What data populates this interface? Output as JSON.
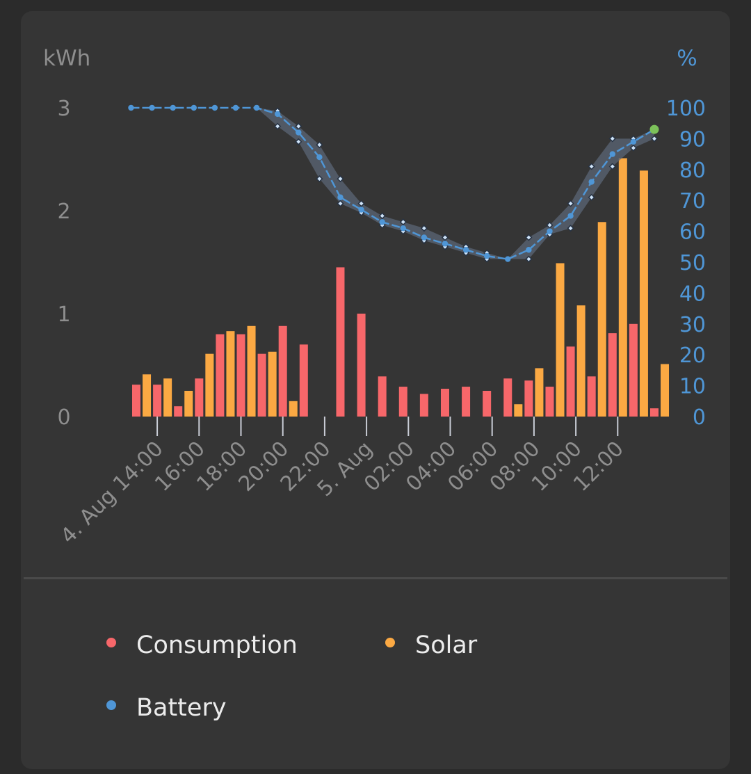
{
  "colors": {
    "consumption": "#f7676a",
    "solar": "#fba943",
    "battery": "#4f96d6",
    "battery_band": "#5b6676",
    "current_point": "#7cc15a",
    "left_axis_text": "#8e8e8e",
    "right_axis_text": "#4f96d6"
  },
  "chart_data": {
    "type": "bar",
    "left_axis": {
      "unit": "kWh",
      "ticks": [
        "0",
        "1",
        "2",
        "3"
      ],
      "ylim": [
        0,
        3
      ]
    },
    "right_axis": {
      "unit": "%",
      "ticks": [
        "0",
        "10",
        "20",
        "30",
        "40",
        "50",
        "60",
        "70",
        "80",
        "90",
        "100"
      ],
      "ylim": [
        0,
        100
      ]
    },
    "x_tick_labels": [
      "4. Aug 14:00",
      "16:00",
      "18:00",
      "20:00",
      "22:00",
      "5. Aug",
      "02:00",
      "04:00",
      "06:00",
      "08:00",
      "10:00",
      "12:00"
    ],
    "series": [
      {
        "name": "Consumption",
        "axis": "left",
        "points": [
          [
            13.0,
            0.31
          ],
          [
            14.0,
            0.31
          ],
          [
            15.0,
            0.1
          ],
          [
            16.0,
            0.37
          ],
          [
            17.0,
            0.8
          ],
          [
            18.0,
            0.8
          ],
          [
            19.0,
            0.61
          ],
          [
            20.0,
            0.88
          ],
          [
            21.0,
            0.7
          ],
          [
            22.75,
            1.45
          ],
          [
            23.75,
            1.0
          ],
          [
            0.75,
            0.39
          ],
          [
            1.75,
            0.29
          ],
          [
            2.75,
            0.22
          ],
          [
            3.75,
            0.27
          ],
          [
            4.75,
            0.29
          ],
          [
            5.75,
            0.25
          ],
          [
            6.75,
            0.37
          ],
          [
            7.75,
            0.35
          ],
          [
            8.75,
            0.29
          ],
          [
            9.75,
            0.68
          ],
          [
            10.75,
            0.39
          ],
          [
            11.75,
            0.81
          ],
          [
            12.75,
            0.9
          ],
          [
            13.75,
            0.08
          ]
        ]
      },
      {
        "name": "Solar",
        "axis": "left",
        "points": [
          [
            13.5,
            0.41
          ],
          [
            14.5,
            0.37
          ],
          [
            15.5,
            0.25
          ],
          [
            16.5,
            0.61
          ],
          [
            17.5,
            0.83
          ],
          [
            18.5,
            0.88
          ],
          [
            19.5,
            0.63
          ],
          [
            20.5,
            0.15
          ],
          [
            7.25,
            0.12
          ],
          [
            8.25,
            0.47
          ],
          [
            9.25,
            1.49
          ],
          [
            10.25,
            1.08
          ],
          [
            11.25,
            1.89
          ],
          [
            12.25,
            2.51
          ],
          [
            13.25,
            2.39
          ],
          [
            14.25,
            0.51
          ]
        ]
      },
      {
        "name": "Battery",
        "axis": "right",
        "type": "line",
        "points": [
          [
            12.75,
            100
          ],
          [
            13.75,
            100
          ],
          [
            14.75,
            100
          ],
          [
            15.75,
            100
          ],
          [
            16.75,
            100
          ],
          [
            17.75,
            100
          ],
          [
            18.75,
            100
          ],
          [
            19.75,
            98
          ],
          [
            20.75,
            92
          ],
          [
            21.75,
            84
          ],
          [
            22.75,
            71
          ],
          [
            23.75,
            67
          ],
          [
            0.75,
            63
          ],
          [
            1.75,
            61
          ],
          [
            2.75,
            58
          ],
          [
            3.75,
            56
          ],
          [
            4.75,
            54
          ],
          [
            5.75,
            52
          ],
          [
            6.75,
            51
          ],
          [
            7.75,
            54
          ],
          [
            8.75,
            60
          ],
          [
            9.75,
            65
          ],
          [
            10.75,
            76
          ],
          [
            11.75,
            85
          ],
          [
            12.75,
            89
          ],
          [
            13.75,
            93
          ]
        ],
        "band_low": [
          100,
          100,
          100,
          100,
          100,
          100,
          100,
          94,
          89,
          77,
          69,
          66,
          62,
          60,
          57,
          55,
          53,
          51,
          51,
          51,
          59,
          61,
          71,
          81,
          87,
          90
        ],
        "band_high": [
          100,
          100,
          100,
          100,
          100,
          100,
          100,
          99,
          94,
          88,
          77,
          69,
          65,
          63,
          61,
          58,
          55,
          53,
          51,
          58,
          62,
          69,
          81,
          90,
          90,
          93
        ]
      }
    ]
  },
  "legend": {
    "consumption_label": "Consumption",
    "solar_label": "Solar",
    "battery_label": "Battery"
  }
}
